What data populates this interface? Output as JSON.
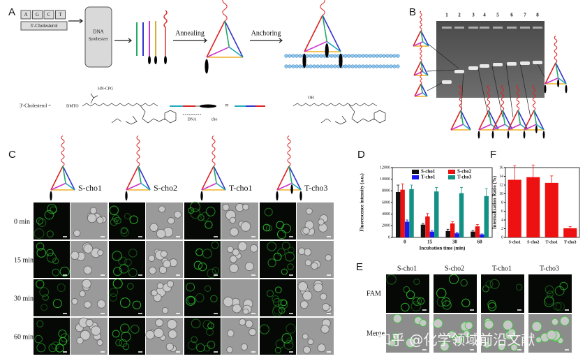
{
  "panel_a": {
    "label": "A",
    "keys": [
      "A",
      "G",
      "C",
      "T"
    ],
    "key_caption": "3'-Cholesterol",
    "synthesizer": [
      "DNA",
      "Synthesizer"
    ],
    "step_1": "Annealing",
    "step_2": "Anchoring",
    "cholesterol_eq": "3'-Cholesterol =",
    "dmto": "DMTO",
    "cpg": "HN-CPG",
    "dna": "DNA",
    "cho": "cho",
    "equals": "=",
    "oh": "OH"
  },
  "panel_b": {
    "label": "B",
    "lanes": [
      "1",
      "2",
      "3",
      "4",
      "5",
      "6",
      "7",
      "8"
    ]
  },
  "panel_c": {
    "label": "C",
    "constructs": [
      "S-cho1",
      "S-cho2",
      "T-cho1",
      "T-cho3"
    ],
    "times": [
      "0 min",
      "15 min",
      "30 min",
      "60 min"
    ]
  },
  "panel_e": {
    "label": "E",
    "constructs": [
      "S-cho1",
      "S-cho2",
      "T-cho1",
      "T-cho3"
    ],
    "rows": [
      "FAM",
      "Merge"
    ]
  },
  "watermark": "知乎 @化学领域前沿文献",
  "chart_data": [
    {
      "type": "bar",
      "panel_label": "D",
      "ylabel": "Fluorescence intensity (a.u.)",
      "xlabel": "Incubation time (min)",
      "categories": [
        "0",
        "15",
        "30",
        "60"
      ],
      "series": [
        {
          "name": "S-cho1",
          "color": "#111111",
          "values": [
            7800,
            2200,
            1100,
            1000
          ],
          "errors": [
            1200,
            200,
            300,
            200
          ]
        },
        {
          "name": "S-cho2",
          "color": "#ee1111",
          "values": [
            8200,
            3600,
            2400,
            1900
          ],
          "errors": [
            1000,
            500,
            300,
            300
          ]
        },
        {
          "name": "T-cho1",
          "color": "#1a1aee",
          "values": [
            2700,
            1000,
            700,
            500
          ],
          "errors": [
            300,
            200,
            150,
            100
          ]
        },
        {
          "name": "T-cho3",
          "color": "#149185",
          "values": [
            8300,
            7900,
            7600,
            7100
          ],
          "errors": [
            700,
            700,
            1000,
            1300
          ]
        }
      ],
      "ylim": [
        0,
        12000
      ],
      "yticks": [
        0,
        2000,
        4000,
        6000,
        8000,
        10000,
        12000
      ],
      "legend": "top"
    },
    {
      "type": "bar",
      "panel_label": "F",
      "ylabel": "Internalization Ratio (%)",
      "categories": [
        "S-cho1",
        "S-cho2",
        "T-cho1",
        "T-cho3"
      ],
      "values": [
        13.2,
        13.8,
        12.5,
        2.1
      ],
      "errors": [
        3.2,
        2.8,
        1.6,
        0.4
      ],
      "color": "#ee1111",
      "ylim": [
        0,
        16
      ],
      "yticks": [
        0,
        2,
        4,
        6,
        8,
        10,
        12,
        14,
        16
      ]
    }
  ]
}
